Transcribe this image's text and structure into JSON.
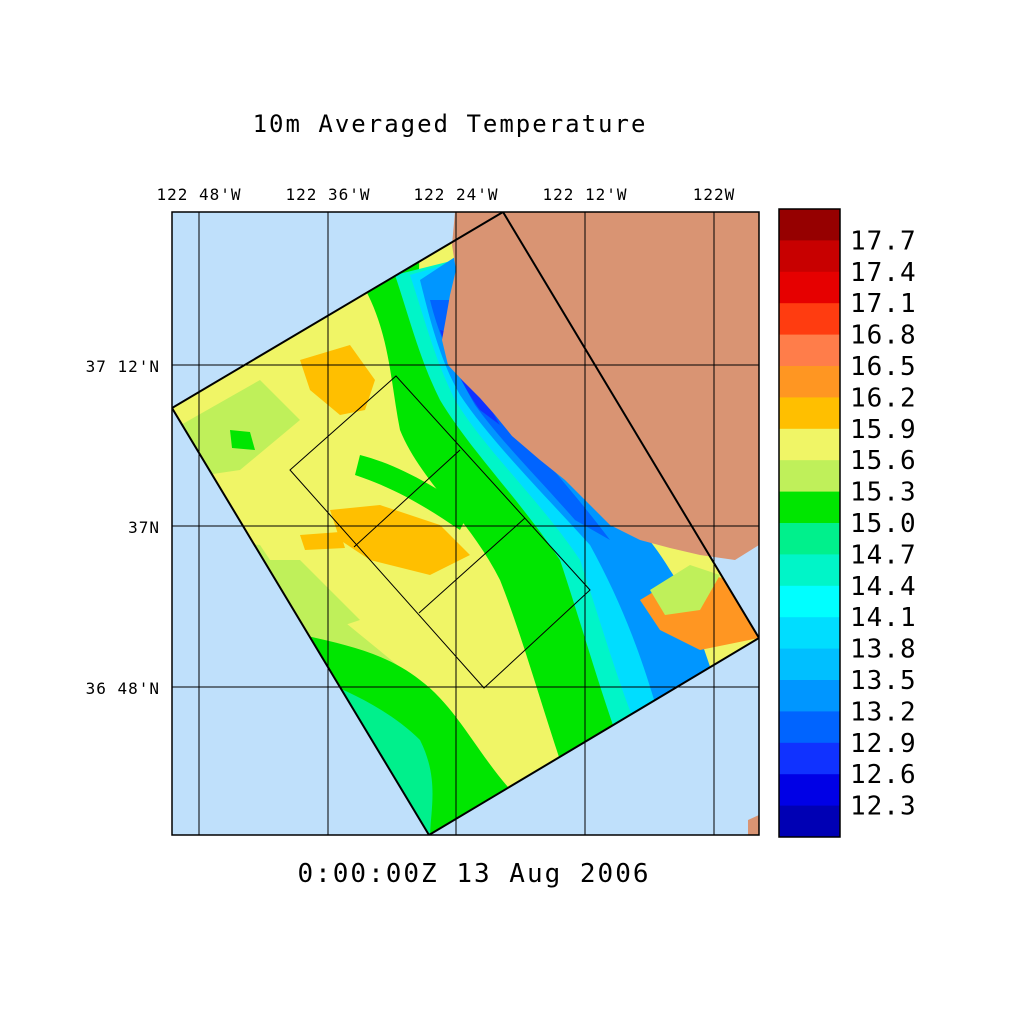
{
  "title": "10m Averaged Temperature",
  "timestamp": "0:00:00Z  13 Aug 2006",
  "lon_ticks": [
    "122 48'W",
    "122 36'W",
    "122 24'W",
    "122 12'W",
    "122W"
  ],
  "lat_ticks": [
    "37 12'N",
    "37N",
    "36 48'N"
  ],
  "colorbar_labels": [
    "17.7",
    "17.4",
    "17.1",
    "16.8",
    "16.5",
    "16.2",
    "15.9",
    "15.6",
    "15.3",
    "15.0",
    "14.7",
    "14.4",
    "14.1",
    "13.8",
    "13.5",
    "13.2",
    "12.9",
    "12.6",
    "12.3"
  ],
  "colors": {
    "ocean_background": "#bfe0fb",
    "land": "#d99473",
    "colorbar": [
      "#960000",
      "#c80000",
      "#e60000",
      "#ff3c10",
      "#ff7d4a",
      "#ff9622",
      "#ffbf00",
      "#f0f566",
      "#bff05a",
      "#00e600",
      "#00f08c",
      "#00f5c8",
      "#00ffff",
      "#00ddff",
      "#00bfff",
      "#0096ff",
      "#0064ff",
      "#1032ff",
      "#0000e6",
      "#0000b4"
    ]
  }
}
